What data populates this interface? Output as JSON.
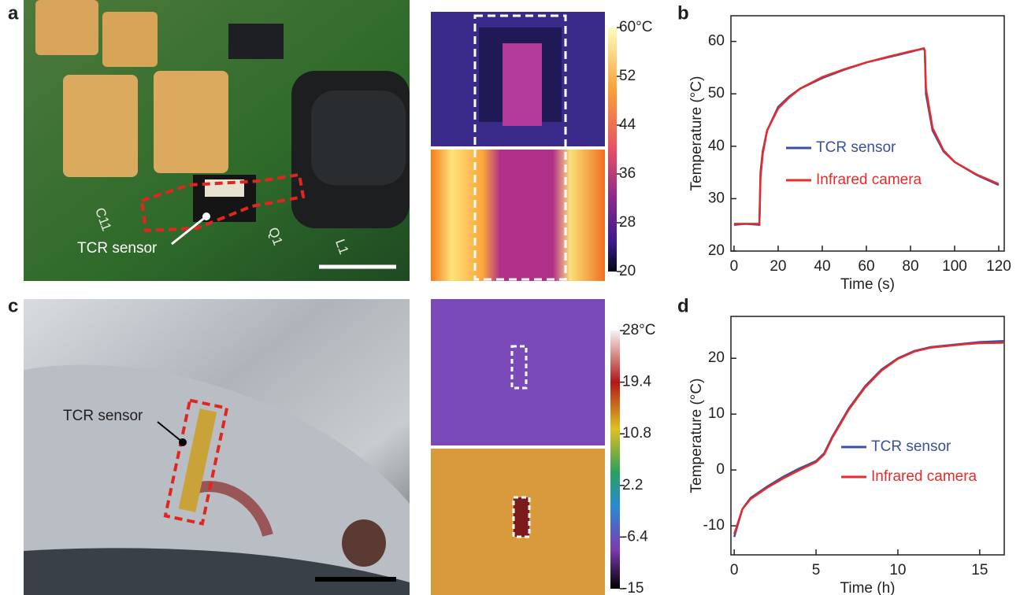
{
  "figure": {
    "panel_labels": [
      "a",
      "b",
      "c",
      "d"
    ],
    "photo_labels": {
      "a_sensor": "TCR sensor",
      "c_sensor": "TCR sensor",
      "pcb": [
        "C11",
        "Q1",
        "L1"
      ]
    },
    "colorbars": [
      {
        "ticks": [
          {
            "value": 60,
            "label": "60°C"
          },
          52,
          44,
          36,
          28,
          20
        ]
      },
      {
        "ticks": [
          {
            "value": 28,
            "label": "28°C"
          },
          19.4,
          10.8,
          2.2,
          -6.4,
          -15
        ]
      }
    ]
  },
  "chart_data": [
    {
      "type": "line",
      "x_label": "Time (s)",
      "y_label": "Temperature (°C)",
      "xlim": [
        -1.4,
        122.5
      ],
      "xticks": [
        0,
        20,
        40,
        60,
        80,
        100,
        120
      ],
      "ylim": [
        20,
        64.9
      ],
      "yticks": [
        20,
        30,
        40,
        50,
        60
      ],
      "series": [
        {
          "name": "TCR sensor",
          "color": "#3a4fa0",
          "x": [
            0,
            5,
            11.5,
            12,
            13,
            15,
            20,
            25,
            30,
            40,
            50,
            60,
            70,
            80,
            86,
            86.5,
            87,
            90,
            95,
            100,
            110,
            120
          ],
          "values": [
            25,
            25.2,
            25,
            35,
            39,
            43,
            47.5,
            49.5,
            51,
            53,
            54.6,
            56,
            57,
            58,
            58.7,
            58.3,
            50,
            43,
            39,
            37,
            34.5,
            32.6
          ]
        },
        {
          "name": "Infrared camera",
          "color": "#e52b2b",
          "x": [
            0,
            5,
            11.5,
            12,
            13,
            15,
            20,
            25,
            30,
            40,
            50,
            60,
            70,
            80,
            86,
            86.5,
            87,
            90,
            95,
            100,
            110,
            120
          ],
          "values": [
            25.2,
            25.2,
            25.2,
            34,
            38.5,
            43,
            47.2,
            49.3,
            51,
            53.2,
            54.7,
            56,
            57.1,
            58.1,
            58.6,
            58.2,
            51,
            43.5,
            39.2,
            37,
            34.6,
            32.8
          ]
        }
      ]
    },
    {
      "type": "line",
      "x_label": "Time (h)",
      "y_label": "Temperature (°C)",
      "xlim": [
        -0.2,
        16.5
      ],
      "xticks": [
        0,
        5,
        10,
        15
      ],
      "ylim": [
        -15.2,
        27.5
      ],
      "yticks": [
        -10,
        0,
        10,
        20
      ],
      "series": [
        {
          "name": "TCR sensor",
          "color": "#3a4fa0",
          "x": [
            0,
            0.5,
            1,
            2,
            3,
            4,
            5,
            5.5,
            6,
            7,
            8,
            9,
            10,
            11,
            12,
            13,
            14,
            15,
            16.5
          ],
          "values": [
            -12,
            -7,
            -5,
            -3,
            -1.2,
            0.3,
            1.6,
            3,
            6,
            11,
            15,
            18,
            20,
            21.3,
            22,
            22.3,
            22.6,
            22.9,
            23.1
          ]
        },
        {
          "name": "Infrared camera",
          "color": "#e52b2b",
          "x": [
            0,
            0.5,
            1,
            2,
            3,
            4,
            5,
            5.5,
            6,
            7,
            8,
            9,
            10,
            11,
            12,
            13,
            14,
            15,
            16.5
          ],
          "values": [
            -11.5,
            -7,
            -5.2,
            -3.2,
            -1.5,
            0,
            1.4,
            2.8,
            5.8,
            10.8,
            14.8,
            17.8,
            19.9,
            21.2,
            21.9,
            22.2,
            22.5,
            22.7,
            22.8
          ]
        }
      ]
    }
  ]
}
